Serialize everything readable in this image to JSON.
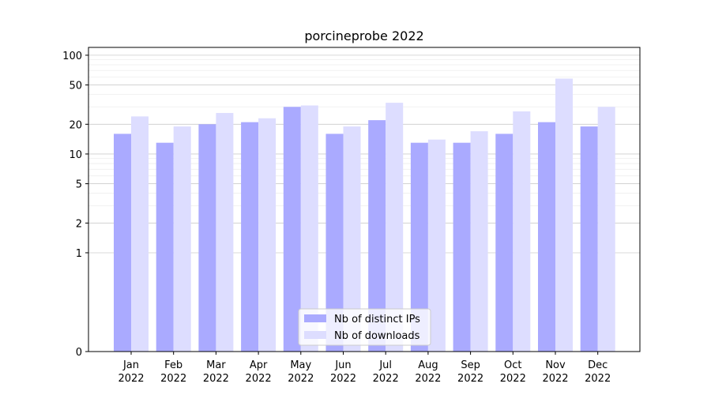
{
  "chart_data": {
    "type": "bar",
    "title": "porcineprobe 2022",
    "xlabel": "",
    "ylabel": "",
    "yscale": "symlog",
    "ylim": [
      0,
      120
    ],
    "yticks": [
      0,
      1,
      2,
      5,
      10,
      20,
      50,
      100
    ],
    "ytick_labels": [
      "0",
      "1",
      "2",
      "5",
      "10",
      "20",
      "50",
      "100"
    ],
    "categories": [
      "Jan\n2022",
      "Feb\n2022",
      "Mar\n2022",
      "Apr\n2022",
      "May\n2022",
      "Jun\n2022",
      "Jul\n2022",
      "Aug\n2022",
      "Sep\n2022",
      "Oct\n2022",
      "Nov\n2022",
      "Dec\n2022"
    ],
    "series": [
      {
        "name": "Nb of distinct IPs",
        "color": "#aaaaff",
        "values": [
          16,
          13,
          20,
          21,
          30,
          16,
          22,
          13,
          13,
          16,
          21,
          19
        ]
      },
      {
        "name": "Nb of downloads",
        "color": "#ddddff",
        "values": [
          24,
          19,
          26,
          23,
          31,
          19,
          33,
          14,
          17,
          27,
          58,
          30
        ]
      }
    ],
    "grid": true,
    "legend_position": "bottom-center"
  }
}
